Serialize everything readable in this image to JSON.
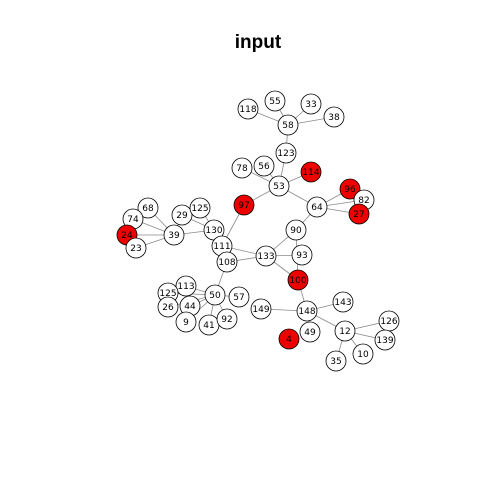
{
  "title": "input",
  "colors": {
    "highlight": "#ee0000",
    "normal": "#ffffff",
    "stroke": "#000000",
    "edge": "#8a8a8a"
  },
  "nodes": [
    {
      "id": "n118",
      "label": "118",
      "highlighted": false
    },
    {
      "id": "n55",
      "label": "55",
      "highlighted": false
    },
    {
      "id": "n33",
      "label": "33",
      "highlighted": false
    },
    {
      "id": "n38",
      "label": "38",
      "highlighted": false
    },
    {
      "id": "n58",
      "label": "58",
      "highlighted": false
    },
    {
      "id": "n123",
      "label": "123",
      "highlighted": false
    },
    {
      "id": "n78",
      "label": "78",
      "highlighted": false
    },
    {
      "id": "n56",
      "label": "56",
      "highlighted": false
    },
    {
      "id": "n114",
      "label": "114",
      "highlighted": true
    },
    {
      "id": "n53",
      "label": "53",
      "highlighted": false
    },
    {
      "id": "n96",
      "label": "96",
      "highlighted": true
    },
    {
      "id": "n82",
      "label": "82",
      "highlighted": false
    },
    {
      "id": "n64",
      "label": "64",
      "highlighted": false
    },
    {
      "id": "n27",
      "label": "27",
      "highlighted": true
    },
    {
      "id": "n97",
      "label": "97",
      "highlighted": true
    },
    {
      "id": "n68",
      "label": "68",
      "highlighted": false
    },
    {
      "id": "n74",
      "label": "74",
      "highlighted": false
    },
    {
      "id": "n29",
      "label": "29",
      "highlighted": false
    },
    {
      "id": "n125a",
      "label": "125",
      "highlighted": false
    },
    {
      "id": "n130",
      "label": "130",
      "highlighted": false
    },
    {
      "id": "n39",
      "label": "39",
      "highlighted": false
    },
    {
      "id": "n24",
      "label": "24",
      "highlighted": true
    },
    {
      "id": "n23",
      "label": "23",
      "highlighted": false
    },
    {
      "id": "n111",
      "label": "111",
      "highlighted": false
    },
    {
      "id": "n90",
      "label": "90",
      "highlighted": false
    },
    {
      "id": "n108",
      "label": "108",
      "highlighted": false
    },
    {
      "id": "n133",
      "label": "133",
      "highlighted": false
    },
    {
      "id": "n93",
      "label": "93",
      "highlighted": false
    },
    {
      "id": "n100",
      "label": "100",
      "highlighted": true
    },
    {
      "id": "n113",
      "label": "113",
      "highlighted": false
    },
    {
      "id": "n125b",
      "label": "125",
      "highlighted": false
    },
    {
      "id": "n50",
      "label": "50",
      "highlighted": false
    },
    {
      "id": "n57",
      "label": "57",
      "highlighted": false
    },
    {
      "id": "n26",
      "label": "26",
      "highlighted": false
    },
    {
      "id": "n44",
      "label": "44",
      "highlighted": false
    },
    {
      "id": "n9",
      "label": "9",
      "highlighted": false
    },
    {
      "id": "n41",
      "label": "41",
      "highlighted": false
    },
    {
      "id": "n92",
      "label": "92",
      "highlighted": false
    },
    {
      "id": "n149",
      "label": "149",
      "highlighted": false
    },
    {
      "id": "n148",
      "label": "148",
      "highlighted": false
    },
    {
      "id": "n143",
      "label": "143",
      "highlighted": false
    },
    {
      "id": "n4",
      "label": "4",
      "highlighted": true
    },
    {
      "id": "n49",
      "label": "49",
      "highlighted": false
    },
    {
      "id": "n12",
      "label": "12",
      "highlighted": false
    },
    {
      "id": "n126",
      "label": "126",
      "highlighted": false
    },
    {
      "id": "n139",
      "label": "139",
      "highlighted": false
    },
    {
      "id": "n35",
      "label": "35",
      "highlighted": false
    },
    {
      "id": "n10",
      "label": "10",
      "highlighted": false
    }
  ],
  "edges": [
    [
      "n118",
      "n58"
    ],
    [
      "n55",
      "n58"
    ],
    [
      "n33",
      "n58"
    ],
    [
      "n38",
      "n58"
    ],
    [
      "n58",
      "n123"
    ],
    [
      "n123",
      "n53"
    ],
    [
      "n78",
      "n53"
    ],
    [
      "n56",
      "n53"
    ],
    [
      "n114",
      "n53"
    ],
    [
      "n53",
      "n97"
    ],
    [
      "n53",
      "n64"
    ],
    [
      "n64",
      "n96"
    ],
    [
      "n64",
      "n82"
    ],
    [
      "n64",
      "n27"
    ],
    [
      "n96",
      "n82"
    ],
    [
      "n82",
      "n27"
    ],
    [
      "n96",
      "n27"
    ],
    [
      "n64",
      "n90"
    ],
    [
      "n97",
      "n111"
    ],
    [
      "n68",
      "n39"
    ],
    [
      "n74",
      "n39"
    ],
    [
      "n29",
      "n39"
    ],
    [
      "n125a",
      "n130"
    ],
    [
      "n39",
      "n130"
    ],
    [
      "n24",
      "n39"
    ],
    [
      "n23",
      "n39"
    ],
    [
      "n24",
      "n74"
    ],
    [
      "n24",
      "n23"
    ],
    [
      "n130",
      "n111"
    ],
    [
      "n29",
      "n130"
    ],
    [
      "n111",
      "n133"
    ],
    [
      "n108",
      "n133"
    ],
    [
      "n111",
      "n108"
    ],
    [
      "n133",
      "n90"
    ],
    [
      "n133",
      "n93"
    ],
    [
      "n133",
      "n100"
    ],
    [
      "n90",
      "n100"
    ],
    [
      "n108",
      "n50"
    ],
    [
      "n113",
      "n50"
    ],
    [
      "n125b",
      "n50"
    ],
    [
      "n57",
      "n50"
    ],
    [
      "n26",
      "n50"
    ],
    [
      "n44",
      "n50"
    ],
    [
      "n9",
      "n50"
    ],
    [
      "n41",
      "n50"
    ],
    [
      "n92",
      "n50"
    ],
    [
      "n113",
      "n44"
    ],
    [
      "n100",
      "n148"
    ],
    [
      "n149",
      "n148"
    ],
    [
      "n148",
      "n49"
    ],
    [
      "n148",
      "n143"
    ],
    [
      "n148",
      "n12"
    ],
    [
      "n12",
      "n126"
    ],
    [
      "n12",
      "n139"
    ],
    [
      "n12",
      "n35"
    ],
    [
      "n12",
      "n10"
    ],
    [
      "n126",
      "n139"
    ]
  ]
}
